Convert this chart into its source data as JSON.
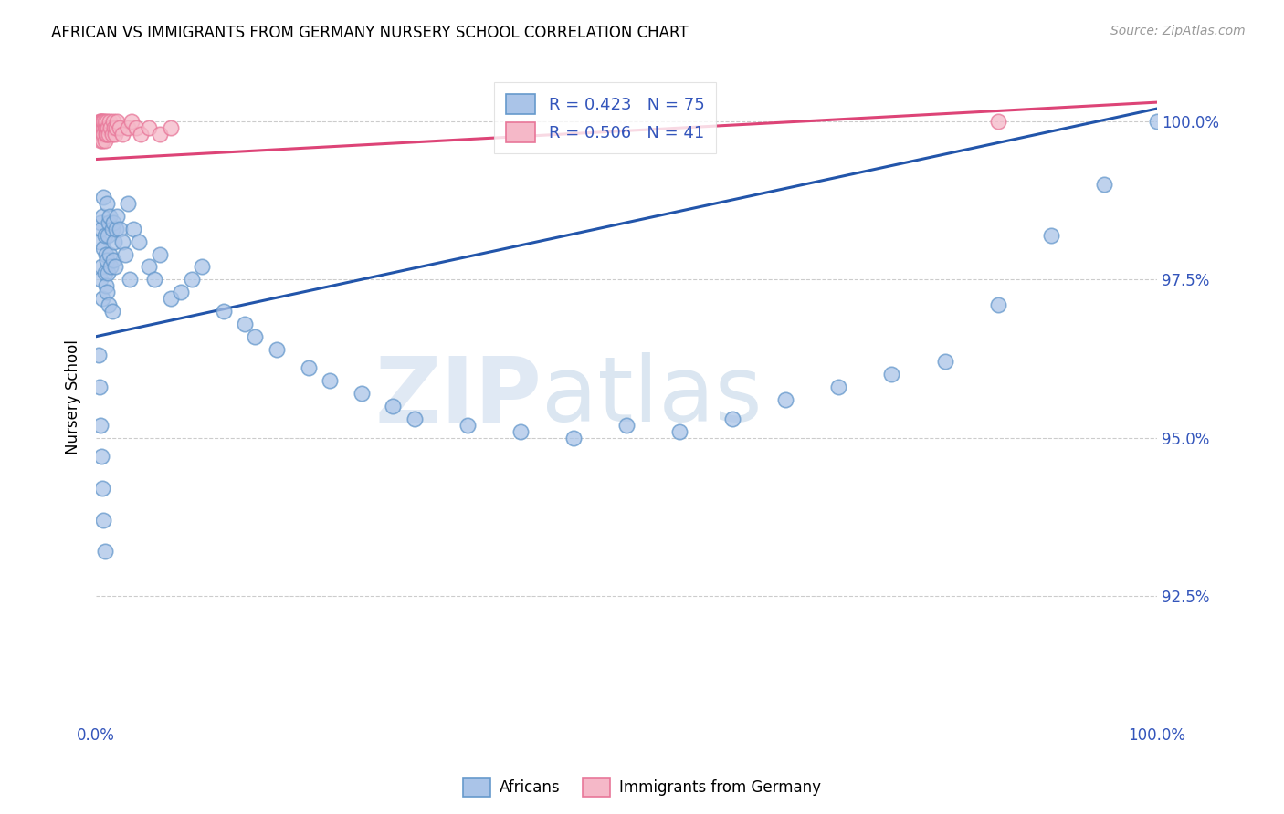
{
  "title": "AFRICAN VS IMMIGRANTS FROM GERMANY NURSERY SCHOOL CORRELATION CHART",
  "source": "Source: ZipAtlas.com",
  "ylabel": "Nursery School",
  "ytick_values": [
    0.925,
    0.95,
    0.975,
    1.0
  ],
  "ytick_labels": [
    "92.5%",
    "95.0%",
    "97.5%",
    "100.0%"
  ],
  "xlim": [
    0.0,
    1.0
  ],
  "ylim": [
    0.905,
    1.008
  ],
  "legend_blue_R": "R = 0.423",
  "legend_blue_N": "N = 75",
  "legend_pink_R": "R = 0.506",
  "legend_pink_N": "N = 41",
  "blue_scatter_color": "#aac4e8",
  "blue_scatter_edge": "#6699cc",
  "pink_scatter_color": "#f5b8c8",
  "pink_scatter_edge": "#e87799",
  "blue_line_color": "#2255aa",
  "pink_line_color": "#dd4477",
  "watermark_zip": "ZIP",
  "watermark_atlas": "atlas",
  "africans_x": [
    0.003,
    0.004,
    0.004,
    0.005,
    0.005,
    0.006,
    0.006,
    0.007,
    0.007,
    0.008,
    0.008,
    0.009,
    0.009,
    0.01,
    0.01,
    0.01,
    0.011,
    0.011,
    0.012,
    0.012,
    0.013,
    0.013,
    0.014,
    0.015,
    0.015,
    0.016,
    0.016,
    0.017,
    0.018,
    0.019,
    0.02,
    0.022,
    0.025,
    0.027,
    0.03,
    0.032,
    0.035,
    0.04,
    0.05,
    0.055,
    0.06,
    0.07,
    0.08,
    0.09,
    0.1,
    0.12,
    0.14,
    0.15,
    0.17,
    0.2,
    0.22,
    0.25,
    0.28,
    0.3,
    0.35,
    0.4,
    0.45,
    0.5,
    0.55,
    0.6,
    0.65,
    0.7,
    0.75,
    0.8,
    0.85,
    0.9,
    0.95,
    1.0,
    0.002,
    0.003,
    0.004,
    0.005,
    0.006,
    0.007,
    0.008
  ],
  "africans_y": [
    0.981,
    0.984,
    0.975,
    0.983,
    0.977,
    0.985,
    0.972,
    0.98,
    0.988,
    0.976,
    0.982,
    0.979,
    0.974,
    0.987,
    0.978,
    0.973,
    0.982,
    0.976,
    0.984,
    0.971,
    0.979,
    0.985,
    0.977,
    0.983,
    0.97,
    0.978,
    0.984,
    0.981,
    0.977,
    0.983,
    0.985,
    0.983,
    0.981,
    0.979,
    0.987,
    0.975,
    0.983,
    0.981,
    0.977,
    0.975,
    0.979,
    0.972,
    0.973,
    0.975,
    0.977,
    0.97,
    0.968,
    0.966,
    0.964,
    0.961,
    0.959,
    0.957,
    0.955,
    0.953,
    0.952,
    0.951,
    0.95,
    0.952,
    0.951,
    0.953,
    0.956,
    0.958,
    0.96,
    0.962,
    0.971,
    0.982,
    0.99,
    1.0,
    0.963,
    0.958,
    0.952,
    0.947,
    0.942,
    0.937,
    0.932
  ],
  "germany_x": [
    0.002,
    0.003,
    0.003,
    0.004,
    0.004,
    0.005,
    0.005,
    0.005,
    0.006,
    0.006,
    0.006,
    0.007,
    0.007,
    0.007,
    0.008,
    0.008,
    0.008,
    0.009,
    0.009,
    0.01,
    0.01,
    0.011,
    0.012,
    0.013,
    0.014,
    0.015,
    0.016,
    0.017,
    0.018,
    0.019,
    0.02,
    0.022,
    0.025,
    0.03,
    0.033,
    0.038,
    0.042,
    0.05,
    0.06,
    0.07,
    0.85
  ],
  "germany_y": [
    0.999,
    0.998,
    1.0,
    0.997,
    1.0,
    0.999,
    0.998,
    1.0,
    0.999,
    0.997,
    1.0,
    0.999,
    0.998,
    1.0,
    0.997,
    0.999,
    1.0,
    0.998,
    0.999,
    0.998,
    1.0,
    0.999,
    0.998,
    1.0,
    0.999,
    0.998,
    1.0,
    0.999,
    0.998,
    0.999,
    1.0,
    0.999,
    0.998,
    0.999,
    1.0,
    0.999,
    0.998,
    0.999,
    0.998,
    0.999,
    1.0
  ],
  "blue_line_x0": 0.0,
  "blue_line_y0": 0.966,
  "blue_line_x1": 1.0,
  "blue_line_y1": 1.002,
  "pink_line_x0": 0.0,
  "pink_line_y0": 0.994,
  "pink_line_x1": 1.0,
  "pink_line_y1": 1.003
}
